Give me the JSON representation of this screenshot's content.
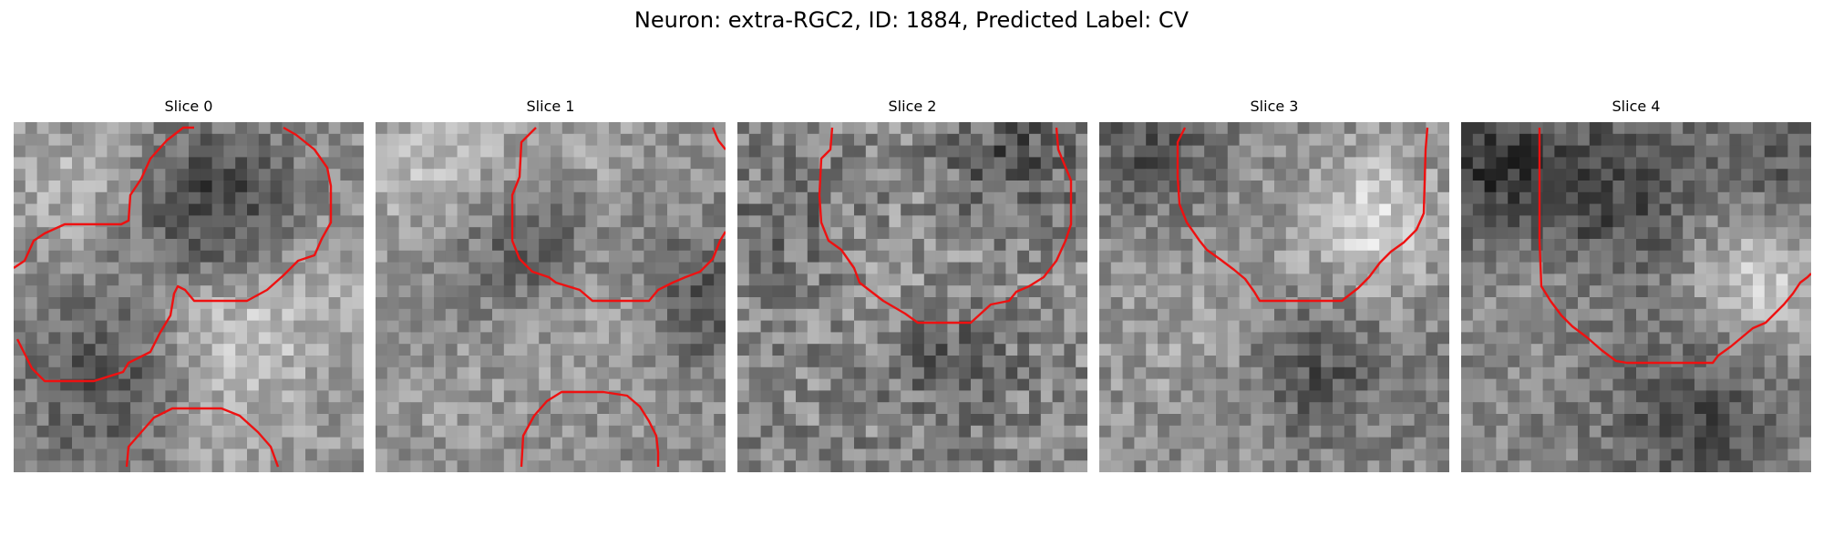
{
  "figure": {
    "title": "Neuron: extra-RGC2, ID: 1884, Predicted Label: CV"
  },
  "panels": [
    {
      "title": "Slice 0"
    },
    {
      "title": "Slice 1"
    },
    {
      "title": "Slice 2"
    },
    {
      "title": "Slice 3"
    },
    {
      "title": "Slice 4"
    }
  ],
  "colors": {
    "contour": "#ee1111",
    "background": "#ffffff"
  }
}
